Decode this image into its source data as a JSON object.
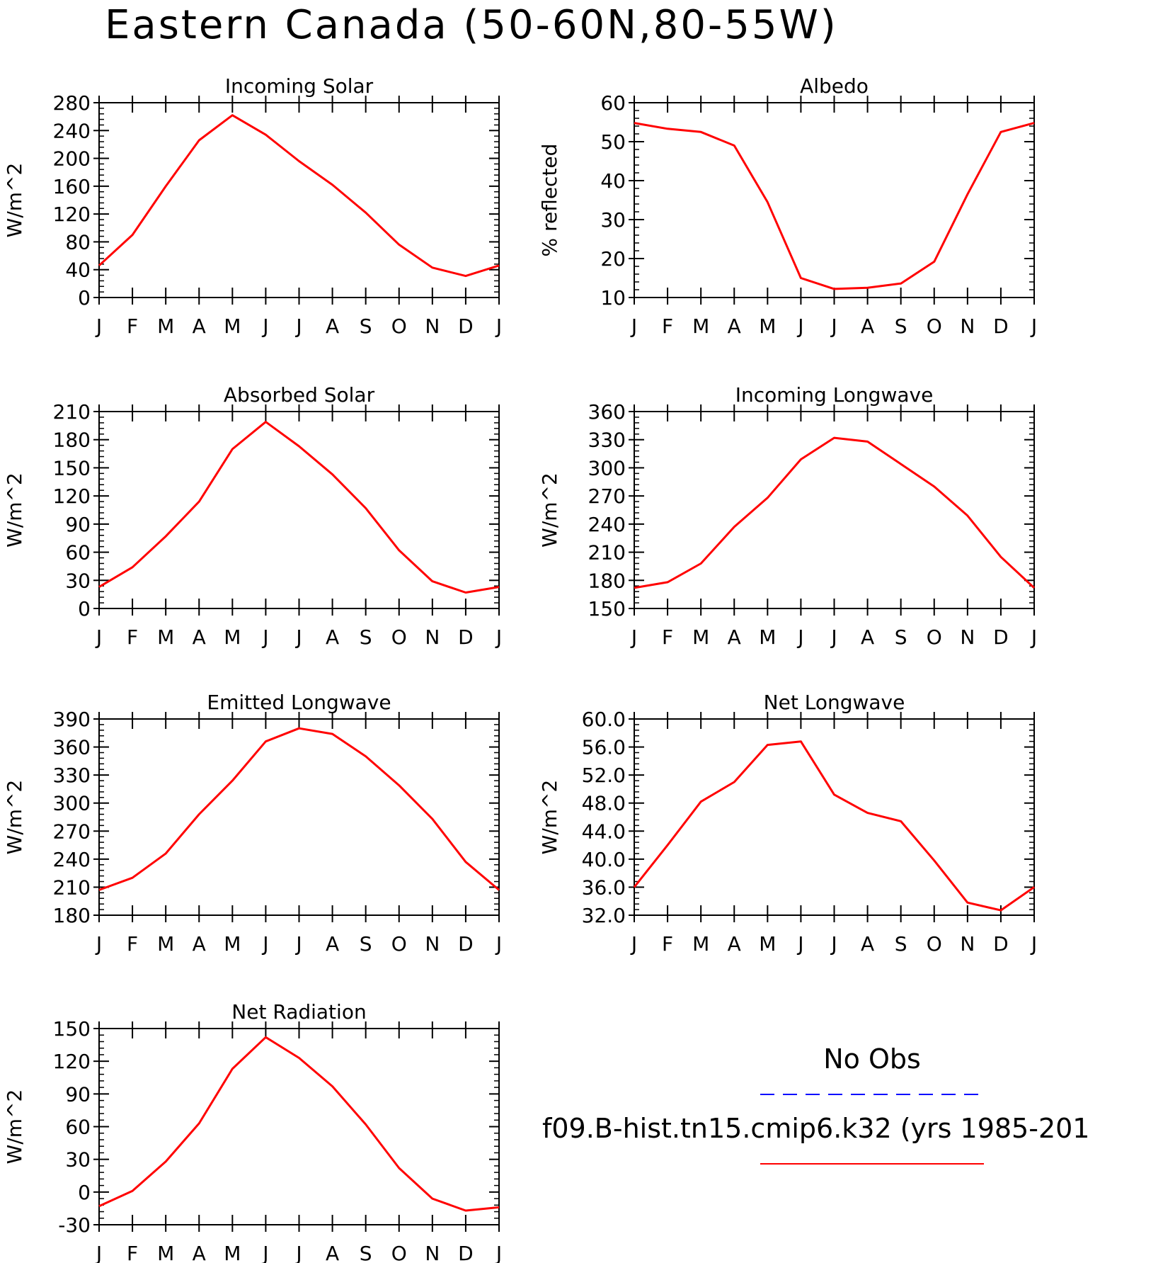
{
  "figure": {
    "title": "Eastern Canada (50-60N,80-55W)",
    "colors": {
      "model": "#ff0000",
      "obs": "#0000ff",
      "axis": "#000000"
    }
  },
  "legend": {
    "obs_label": "No Obs",
    "model_label": "f09.B-hist.tn15.cmip6.k32 (yrs 1985-201"
  },
  "chart_data": [
    {
      "type": "line",
      "title": "Incoming Solar",
      "ylabel": "W/m^2",
      "x": [
        "J",
        "F",
        "M",
        "A",
        "M",
        "J",
        "J",
        "A",
        "S",
        "O",
        "N",
        "D",
        "J"
      ],
      "ylim": [
        0,
        280
      ],
      "yticks": [
        "0",
        "40",
        "80",
        "120",
        "160",
        "200",
        "240",
        "280"
      ],
      "series": [
        {
          "values": [
            46,
            90,
            160,
            226,
            262,
            234,
            196,
            162,
            122,
            76,
            43,
            31,
            46
          ]
        }
      ]
    },
    {
      "type": "line",
      "title": "Albedo",
      "ylabel": "% reflected",
      "x": [
        "J",
        "F",
        "M",
        "A",
        "M",
        "J",
        "J",
        "A",
        "S",
        "O",
        "N",
        "D",
        "J"
      ],
      "ylim": [
        10,
        60
      ],
      "yticks": [
        "10",
        "20",
        "30",
        "40",
        "50",
        "60"
      ],
      "series": [
        {
          "values": [
            54.8,
            53.3,
            52.5,
            49.0,
            34.5,
            15.0,
            12.2,
            12.5,
            13.6,
            19.2,
            36.5,
            52.5,
            54.8
          ]
        }
      ]
    },
    {
      "type": "line",
      "title": "Absorbed Solar",
      "ylabel": "W/m^2",
      "x": [
        "J",
        "F",
        "M",
        "A",
        "M",
        "J",
        "J",
        "A",
        "S",
        "O",
        "N",
        "D",
        "J"
      ],
      "ylim": [
        0,
        210
      ],
      "yticks": [
        "0",
        "30",
        "60",
        "90",
        "120",
        "150",
        "180",
        "210"
      ],
      "series": [
        {
          "values": [
            23,
            44,
            77,
            114,
            170,
            199,
            173,
            143,
            107,
            62,
            29,
            17,
            23
          ]
        }
      ]
    },
    {
      "type": "line",
      "title": "Incoming Longwave",
      "ylabel": "W/m^2",
      "x": [
        "J",
        "F",
        "M",
        "A",
        "M",
        "J",
        "J",
        "A",
        "S",
        "O",
        "N",
        "D",
        "J"
      ],
      "ylim": [
        150,
        360
      ],
      "yticks": [
        "150",
        "180",
        "210",
        "240",
        "270",
        "300",
        "330",
        "360"
      ],
      "series": [
        {
          "values": [
            172,
            178,
            198,
            237,
            268,
            309,
            332,
            328,
            304,
            280,
            249,
            205,
            172
          ]
        }
      ]
    },
    {
      "type": "line",
      "title": "Emitted Longwave",
      "ylabel": "W/m^2",
      "x": [
        "J",
        "F",
        "M",
        "A",
        "M",
        "J",
        "J",
        "A",
        "S",
        "O",
        "N",
        "D",
        "J"
      ],
      "ylim": [
        180,
        390
      ],
      "yticks": [
        "180",
        "210",
        "240",
        "270",
        "300",
        "330",
        "360",
        "390"
      ],
      "series": [
        {
          "values": [
            207,
            220,
            246,
            288,
            324,
            366,
            380,
            374,
            350,
            319,
            283,
            237,
            207
          ]
        }
      ]
    },
    {
      "type": "line",
      "title": "Net Longwave",
      "ylabel": "W/m^2",
      "x": [
        "J",
        "F",
        "M",
        "A",
        "M",
        "J",
        "J",
        "A",
        "S",
        "O",
        "N",
        "D",
        "J"
      ],
      "ylim": [
        32,
        60
      ],
      "yticks": [
        "32.0",
        "36.0",
        "40.0",
        "44.0",
        "48.0",
        "52.0",
        "56.0",
        "60.0"
      ],
      "series": [
        {
          "values": [
            36.0,
            42.0,
            48.2,
            51.0,
            56.3,
            56.8,
            49.2,
            46.6,
            45.4,
            39.8,
            33.8,
            32.7,
            36.0
          ]
        }
      ]
    },
    {
      "type": "line",
      "title": "Net Radiation",
      "ylabel": "W/m^2",
      "x": [
        "J",
        "F",
        "M",
        "A",
        "M",
        "J",
        "J",
        "A",
        "S",
        "O",
        "N",
        "D",
        "J"
      ],
      "ylim": [
        -30,
        150
      ],
      "yticks": [
        "-30",
        "0",
        "30",
        "60",
        "90",
        "120",
        "150"
      ],
      "series": [
        {
          "values": [
            -13,
            1,
            28,
            63,
            113,
            142,
            123,
            97,
            62,
            22,
            -6,
            -17,
            -14
          ]
        }
      ]
    }
  ]
}
